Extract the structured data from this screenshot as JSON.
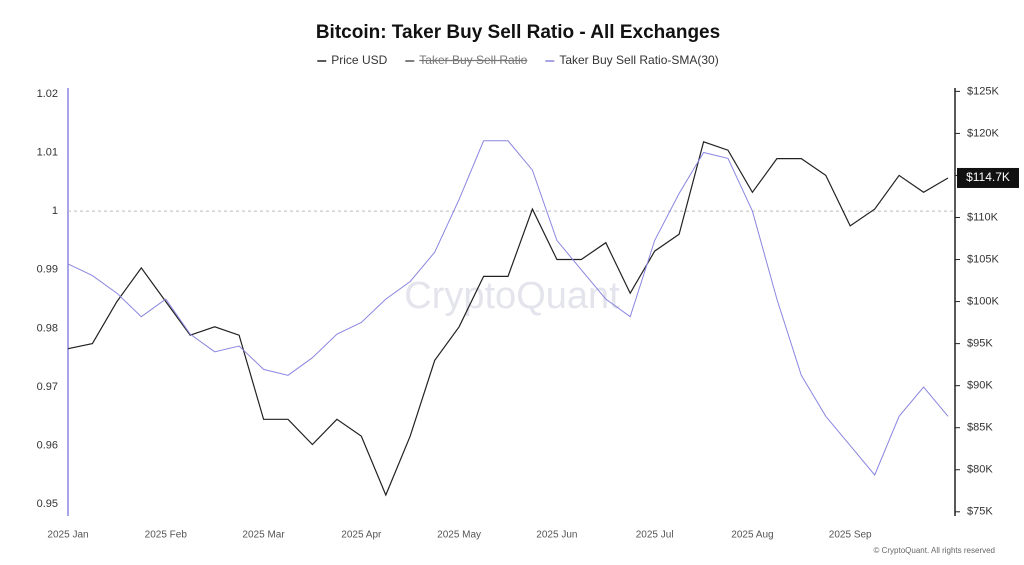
{
  "chart_data": {
    "type": "line",
    "title": "Bitcoin: Taker Buy Sell Ratio - All Exchanges",
    "watermark": "CryptoQuant",
    "copyright": "© CryptoQuant. All rights reserved",
    "categories": [
      "2025 Jan",
      null,
      null,
      null,
      "2025 Feb",
      null,
      null,
      null,
      "2025 Mar",
      null,
      null,
      null,
      "2025 Apr",
      null,
      null,
      null,
      "2025 May",
      null,
      null,
      null,
      "2025 Jun",
      null,
      null,
      null,
      "2025 Jul",
      null,
      null,
      null,
      "2025 Aug",
      null,
      null,
      null,
      "2025 Sep",
      null,
      null,
      null,
      null
    ],
    "series": [
      {
        "name": "Price USD",
        "color": "#222222",
        "axis": "y2",
        "values": [
          94400,
          95000,
          100000,
          104000,
          100000,
          96000,
          97000,
          96000,
          86000,
          86000,
          83000,
          86000,
          84000,
          77000,
          84000,
          93000,
          97000,
          103000,
          103000,
          111000,
          105000,
          105000,
          107000,
          101000,
          106000,
          108000,
          119000,
          118000,
          113000,
          117000,
          117000,
          115000,
          109000,
          111000,
          115000,
          113000,
          114700
        ],
        "value_labels": [
          null,
          null,
          null,
          null,
          null,
          null,
          null,
          null,
          null,
          null,
          null,
          null,
          null,
          null,
          null,
          null,
          null,
          null,
          null,
          null,
          null,
          null,
          null,
          null,
          null,
          null,
          null,
          null,
          null,
          null,
          null,
          null,
          null,
          null,
          null,
          null,
          "$114.7K"
        ]
      },
      {
        "name": "Taker Buy Sell Ratio",
        "color": "#555555",
        "hidden": true,
        "values": [
          null,
          null,
          null,
          null,
          null,
          null,
          null,
          null,
          null,
          null,
          null,
          null,
          null,
          null,
          null,
          null,
          null,
          null,
          null,
          null,
          null,
          null,
          null,
          null,
          null,
          null,
          null,
          null,
          null,
          null,
          null,
          null,
          null,
          null,
          null,
          null,
          null
        ]
      },
      {
        "name": "Taker Buy Sell Ratio-SMA(30)",
        "color": "#8a86e0",
        "values": [
          0.991,
          0.989,
          0.986,
          0.982,
          0.985,
          0.979,
          0.976,
          0.977,
          0.973,
          0.972,
          0.975,
          0.979,
          0.981,
          0.985,
          0.988,
          0.993,
          1.002,
          1.012,
          1.012,
          1.007,
          0.995,
          0.99,
          0.985,
          0.982,
          0.995,
          1.003,
          1.01,
          1.009,
          1.0,
          0.985,
          0.972,
          0.965,
          0.96,
          0.955,
          0.965,
          0.97,
          0.965
        ]
      }
    ],
    "ylim": [
      0.948,
      1.021
    ],
    "yticks": [
      0.95,
      0.96,
      0.97,
      0.98,
      0.99,
      1,
      1.01,
      1.02
    ],
    "y2lim": [
      74500,
      125400
    ],
    "y2ticks": [
      {
        "value": 75000,
        "label": "$75K"
      },
      {
        "value": 80000,
        "label": "$80K"
      },
      {
        "value": 85000,
        "label": "$85K"
      },
      {
        "value": 90000,
        "label": "$90K"
      },
      {
        "value": 95000,
        "label": "$95K"
      },
      {
        "value": 100000,
        "label": "$100K"
      },
      {
        "value": 105000,
        "label": "$105K"
      },
      {
        "value": 110000,
        "label": "$110K"
      },
      {
        "value": 115000,
        "label": "$115K"
      },
      {
        "value": 120000,
        "label": "$120K"
      },
      {
        "value": 125000,
        "label": "$125K"
      }
    ],
    "reference_line": 1,
    "grid": false
  }
}
